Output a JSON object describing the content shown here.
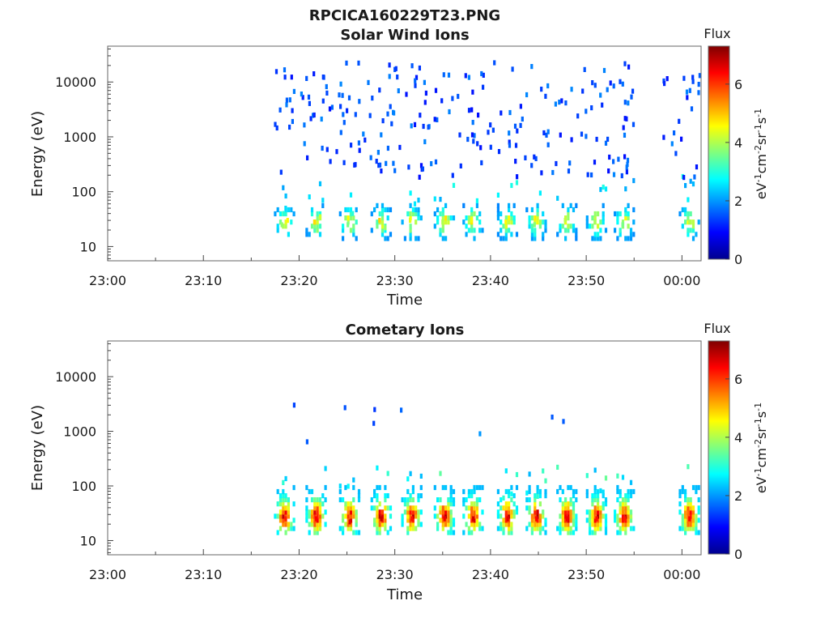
{
  "figure": {
    "title": "RPCICA160229T23.PNG"
  },
  "colors": {
    "colormap": [
      "#00008f",
      "#0000ff",
      "#007fff",
      "#00ffff",
      "#7fff7f",
      "#ffff00",
      "#ff7f00",
      "#ff0000",
      "#7f0000"
    ]
  },
  "chart_data": [
    {
      "type": "heatmap",
      "title": "Solar Wind Ions",
      "xlabel": "Time",
      "ylabel": "Energy (eV)",
      "x_ticks": [
        "23:00",
        "23:10",
        "23:20",
        "23:30",
        "23:40",
        "23:50",
        "00:00"
      ],
      "x_tick_minutes": [
        0,
        10,
        20,
        30,
        40,
        50,
        60
      ],
      "xlim_minutes": [
        0,
        62
      ],
      "y_scale": "log",
      "ylim": [
        5.5,
        45000
      ],
      "y_ticks": [
        "10",
        "100",
        "1000",
        "10000"
      ],
      "y_tick_values": [
        10,
        100,
        1000,
        10000
      ],
      "colorbar": {
        "label": "Flux",
        "unit": "eV-1cm-2sr-1s-1",
        "ticks": [
          "0",
          "2",
          "4",
          "6"
        ],
        "tick_values": [
          0,
          2,
          4,
          6
        ],
        "range": [
          0,
          7.3
        ]
      },
      "data_start_minute": 17.5,
      "data_gap_minutes": [
        55.5,
        58.0
      ],
      "energy_sweep_bursts_minutes": [
        18.5,
        21.8,
        25.3,
        28.6,
        31.8,
        35.2,
        38.2,
        41.8,
        44.8,
        48.0,
        51.1,
        54.0,
        60.8
      ],
      "cells": [
        {
          "t": 18.2,
          "e": 25,
          "v": 3.8
        },
        {
          "t": 18.8,
          "e": 30,
          "v": 4.6
        },
        {
          "t": 18.4,
          "e": 40,
          "v": 3.0
        },
        {
          "t": 18.6,
          "e": 50,
          "v": 2.5
        },
        {
          "t": 21.6,
          "e": 28,
          "v": 4.8
        },
        {
          "t": 22.2,
          "e": 35,
          "v": 4.2
        },
        {
          "t": 25.1,
          "e": 25,
          "v": 3.6
        },
        {
          "t": 25.6,
          "e": 40,
          "v": 3.0
        },
        {
          "t": 28.4,
          "e": 30,
          "v": 4.9
        },
        {
          "t": 29.0,
          "e": 22,
          "v": 3.8
        },
        {
          "t": 31.6,
          "e": 30,
          "v": 4.4
        },
        {
          "t": 32.1,
          "e": 60,
          "v": 2.6
        },
        {
          "t": 35.0,
          "e": 28,
          "v": 4.0
        },
        {
          "t": 38.0,
          "e": 30,
          "v": 4.5
        },
        {
          "t": 41.6,
          "e": 28,
          "v": 4.6
        },
        {
          "t": 44.6,
          "e": 25,
          "v": 3.7
        },
        {
          "t": 47.8,
          "e": 30,
          "v": 4.1
        },
        {
          "t": 50.9,
          "e": 28,
          "v": 3.9
        },
        {
          "t": 53.8,
          "e": 25,
          "v": 3.6
        },
        {
          "t": 60.8,
          "e": 28,
          "v": 4.0
        },
        {
          "t": 19.0,
          "e": 1500,
          "v": 1.4
        },
        {
          "t": 25.0,
          "e": 3000,
          "v": 1.2
        },
        {
          "t": 33.5,
          "e": 1500,
          "v": 1.5
        },
        {
          "t": 42.0,
          "e": 700,
          "v": 1.6
        }
      ]
    },
    {
      "type": "heatmap",
      "title": "Cometary Ions",
      "xlabel": "Time",
      "ylabel": "Energy (eV)",
      "x_ticks": [
        "23:00",
        "23:10",
        "23:20",
        "23:30",
        "23:40",
        "23:50",
        "00:00"
      ],
      "x_tick_minutes": [
        0,
        10,
        20,
        30,
        40,
        50,
        60
      ],
      "xlim_minutes": [
        0,
        62
      ],
      "y_scale": "log",
      "ylim": [
        5.5,
        45000
      ],
      "y_ticks": [
        "10",
        "100",
        "1000",
        "10000"
      ],
      "y_tick_values": [
        10,
        100,
        1000,
        10000
      ],
      "colorbar": {
        "label": "Flux",
        "unit": "eV-1cm-2sr-1s-1",
        "ticks": [
          "0",
          "2",
          "4",
          "6"
        ],
        "tick_values": [
          0,
          2,
          4,
          6
        ],
        "range": [
          0,
          7.3
        ]
      },
      "data_start_minute": 17.5,
      "data_gap_minutes": [
        55.5,
        58.0
      ],
      "energy_sweep_bursts_minutes": [
        18.5,
        21.8,
        25.3,
        28.6,
        31.8,
        35.2,
        38.2,
        41.8,
        44.8,
        48.0,
        51.1,
        54.0,
        60.8
      ],
      "cells": [
        {
          "t": 18.6,
          "e": 25,
          "v": 6.2
        },
        {
          "t": 21.8,
          "e": 25,
          "v": 6.4
        },
        {
          "t": 25.3,
          "e": 22,
          "v": 6.6
        },
        {
          "t": 28.6,
          "e": 25,
          "v": 6.8
        },
        {
          "t": 31.8,
          "e": 25,
          "v": 6.3
        },
        {
          "t": 35.2,
          "e": 25,
          "v": 6.5
        },
        {
          "t": 38.2,
          "e": 25,
          "v": 6.7
        },
        {
          "t": 41.8,
          "e": 25,
          "v": 6.6
        },
        {
          "t": 44.8,
          "e": 25,
          "v": 6.4
        },
        {
          "t": 48.0,
          "e": 25,
          "v": 6.5
        },
        {
          "t": 51.1,
          "e": 25,
          "v": 6.3
        },
        {
          "t": 54.0,
          "e": 25,
          "v": 6.2
        },
        {
          "t": 60.8,
          "e": 25,
          "v": 6.4
        },
        {
          "t": 24.8,
          "e": 2700,
          "v": 1.5
        },
        {
          "t": 27.9,
          "e": 2500,
          "v": 1.3
        },
        {
          "t": 27.8,
          "e": 1400,
          "v": 1.4
        },
        {
          "t": 38.9,
          "e": 900,
          "v": 2.0
        }
      ]
    }
  ]
}
